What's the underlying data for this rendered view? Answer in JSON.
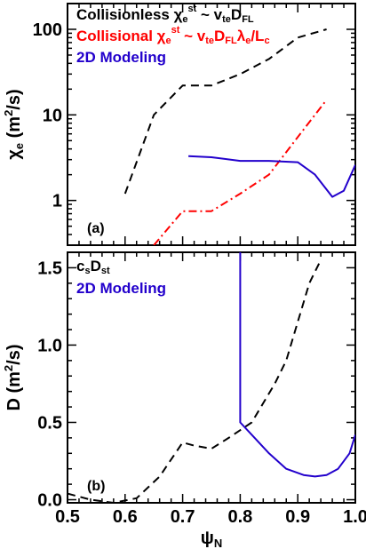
{
  "chart_data": [
    {
      "type": "line",
      "panel_label": "(a)",
      "ylabel": "χe (m²/s)",
      "yscale": "log",
      "xlim": [
        0.5,
        1.0
      ],
      "ylim": [
        0.3,
        200
      ],
      "x_ticks": [
        "0.5",
        "0.6",
        "0.7",
        "0.8",
        "0.9",
        "1.0"
      ],
      "y_ticks": [
        {
          "value": 1,
          "label": "1"
        },
        {
          "value": 10,
          "label": "10"
        },
        {
          "value": 100,
          "label": "100"
        }
      ],
      "legend_position": "top-left",
      "series": [
        {
          "name": "Collisionless χe^st ~ vte DFL",
          "legend": {
            "main": "Collisionless χ",
            "sub": "e",
            "sup": "st",
            "rest": " ~ v",
            "rest_sub": "te",
            "rest2": "D",
            "rest2_sub": "FL"
          },
          "color": "#000000",
          "dash": "dashed",
          "x": [
            0.6,
            0.65,
            0.7,
            0.75,
            0.8,
            0.85,
            0.9,
            0.95
          ],
          "y": [
            1.2,
            10,
            22,
            22,
            30,
            45,
            80,
            100
          ]
        },
        {
          "name": "Collisional χe^st ~ vte DFL λe/Lc",
          "color": "#ff0000",
          "dash": "dashdot",
          "x": [
            0.65,
            0.7,
            0.75,
            0.8,
            0.85,
            0.9,
            0.95
          ],
          "y": [
            0.3,
            0.75,
            0.75,
            1.2,
            2.0,
            5.5,
            15
          ]
        },
        {
          "name": "2D Modeling",
          "color": "#2200cc",
          "dash": "solid",
          "x": [
            0.71,
            0.75,
            0.8,
            0.85,
            0.9,
            0.93,
            0.96,
            0.98,
            1.0
          ],
          "y": [
            3.3,
            3.2,
            2.9,
            2.9,
            2.8,
            2.0,
            1.1,
            1.3,
            2.6
          ]
        }
      ]
    },
    {
      "type": "line",
      "panel_label": "(b)",
      "ylabel": "D (m²/s)",
      "xlabel": "ψN",
      "xlim": [
        0.5,
        1.0
      ],
      "ylim": [
        -0.02,
        1.6
      ],
      "x_ticks": [
        "0.5",
        "0.6",
        "0.7",
        "0.8",
        "0.9",
        "1.0"
      ],
      "y_ticks": [
        {
          "value": 0.0,
          "label": "0.0"
        },
        {
          "value": 0.5,
          "label": "0.5"
        },
        {
          "value": 1.0,
          "label": "1.0"
        },
        {
          "value": 1.5,
          "label": "1.5"
        }
      ],
      "legend_position": "top-left",
      "series": [
        {
          "name": "csDst",
          "color": "#000000",
          "dash": "dashed",
          "x": [
            0.5,
            0.54,
            0.58,
            0.62,
            0.66,
            0.7,
            0.72,
            0.75,
            0.78,
            0.82,
            0.86,
            0.88,
            0.9,
            0.92,
            0.94
          ],
          "y": [
            0.04,
            0.0,
            -0.02,
            0.01,
            0.15,
            0.37,
            0.35,
            0.33,
            0.4,
            0.5,
            0.75,
            0.9,
            1.15,
            1.4,
            1.55
          ]
        },
        {
          "name": "2D Modeling",
          "color": "#2200cc",
          "dash": "solid",
          "x": [
            0.8,
            0.8,
            0.82,
            0.85,
            0.88,
            0.91,
            0.93,
            0.95,
            0.97,
            0.99,
            1.0
          ],
          "y": [
            1.6,
            0.5,
            0.42,
            0.3,
            0.2,
            0.16,
            0.15,
            0.16,
            0.2,
            0.3,
            0.42
          ]
        }
      ]
    }
  ]
}
